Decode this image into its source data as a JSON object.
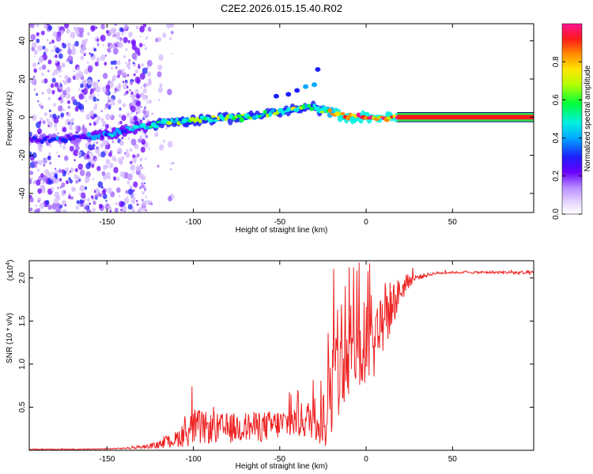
{
  "title": "C2E2.2026.015.15.40.R02",
  "chart_data": [
    {
      "type": "heatmap",
      "title": "C2E2.2026.015.15.40.R02",
      "xlabel": "Height of straight line (km)",
      "ylabel": "Frequency (Hz)",
      "xlim": [
        -195,
        97
      ],
      "ylim": [
        -50,
        49
      ],
      "xticks": [
        -150,
        -100,
        -50,
        0,
        50
      ],
      "yticks": [
        -40,
        -20,
        0,
        20,
        40
      ],
      "xtick_labels": [
        "-150",
        "-100",
        "-50",
        "0",
        "50"
      ],
      "ytick_labels": [
        "-40",
        "-20",
        "0",
        "20",
        "40"
      ],
      "colorbar": {
        "label": "Normalized spectral amplitude",
        "range": [
          0,
          1
        ],
        "ticks": [
          0.0,
          0.2,
          0.4,
          0.6,
          0.8
        ],
        "tick_labels": [
          "0.0",
          "0.2",
          "0.4",
          "0.6",
          "0.8"
        ],
        "colors": [
          "#ffffff",
          "#d4b8ff",
          "#9b5cff",
          "#6a00ff",
          "#1e1eff",
          "#00aaff",
          "#00f0e0",
          "#00ff3c",
          "#b4ff00",
          "#ffe600",
          "#ff8c00",
          "#ff1a1a",
          "#ff1493"
        ]
      },
      "series": [
        {
          "name": "noise-scatter",
          "x_range": [
            -195,
            -125
          ],
          "y_range": [
            -50,
            49
          ],
          "amplitude": [
            0.05,
            0.35
          ]
        },
        {
          "name": "signal-ridge",
          "x": [
            -195,
            -170,
            -150,
            -130,
            -110,
            -90,
            -70,
            -50,
            -40,
            -30,
            -20,
            -10,
            0,
            10,
            20,
            40,
            60,
            80,
            97
          ],
          "y": [
            -12,
            -11,
            -9,
            -5,
            -2,
            -1,
            0,
            3,
            4,
            5,
            2,
            0,
            0,
            0,
            0,
            0,
            0,
            0,
            0
          ],
          "amplitude": [
            0.3,
            0.35,
            0.4,
            0.5,
            0.6,
            0.65,
            0.6,
            0.6,
            0.65,
            0.55,
            0.8,
            0.95,
            0.9,
            0.9,
            0.95,
            1,
            1,
            1,
            1
          ]
        },
        {
          "name": "harmonic-trace",
          "x": [
            -52,
            -45,
            -40,
            -35,
            -30,
            -28
          ],
          "y": [
            11,
            12,
            14,
            16,
            17,
            25
          ],
          "amplitude": [
            0.3,
            0.35,
            0.35,
            0.4,
            0.4,
            0.35
          ]
        }
      ]
    },
    {
      "type": "line",
      "xlabel": "Height of straight line (km)",
      "ylabel": "SNR (10 * v/v)",
      "y_multiplier_label": "(x10",
      "y_multiplier_exp": "4",
      "xlim": [
        -195,
        97
      ],
      "ylim": [
        0,
        2.2
      ],
      "xticks": [
        -150,
        -100,
        -50,
        0,
        50
      ],
      "yticks": [
        0.5,
        1.0,
        1.5,
        2.0
      ],
      "xtick_labels": [
        "-150",
        "-100",
        "-50",
        "0",
        "50"
      ],
      "ytick_labels": [
        "0.5",
        "1.0",
        "1.5",
        "2.0"
      ],
      "color": "#ee2222",
      "envelope": {
        "x": [
          -195,
          -160,
          -140,
          -130,
          -120,
          -110,
          -100,
          -90,
          -80,
          -70,
          -60,
          -50,
          -40,
          -30,
          -25,
          -22,
          -20,
          -15,
          -10,
          -5,
          0,
          5,
          10,
          15,
          20,
          25,
          30,
          40,
          50,
          60,
          70,
          80,
          90,
          97
        ],
        "base": [
          0.01,
          0.01,
          0.02,
          0.03,
          0.05,
          0.1,
          0.2,
          0.2,
          0.2,
          0.22,
          0.22,
          0.25,
          0.28,
          0.3,
          0.35,
          0.5,
          0.6,
          0.75,
          0.9,
          1.0,
          1.05,
          1.2,
          1.4,
          1.6,
          1.8,
          1.95,
          2.0,
          2.05,
          2.06,
          2.06,
          2.06,
          2.06,
          2.05,
          2.05
        ],
        "spread": [
          0.005,
          0.008,
          0.01,
          0.02,
          0.05,
          0.12,
          0.28,
          0.22,
          0.22,
          0.22,
          0.22,
          0.22,
          0.25,
          0.3,
          0.6,
          0.9,
          0.7,
          0.6,
          0.5,
          0.6,
          0.7,
          0.6,
          0.55,
          0.35,
          0.2,
          0.1,
          0.04,
          0.02,
          0.015,
          0.015,
          0.02,
          0.02,
          0.03,
          0.03
        ]
      }
    }
  ]
}
